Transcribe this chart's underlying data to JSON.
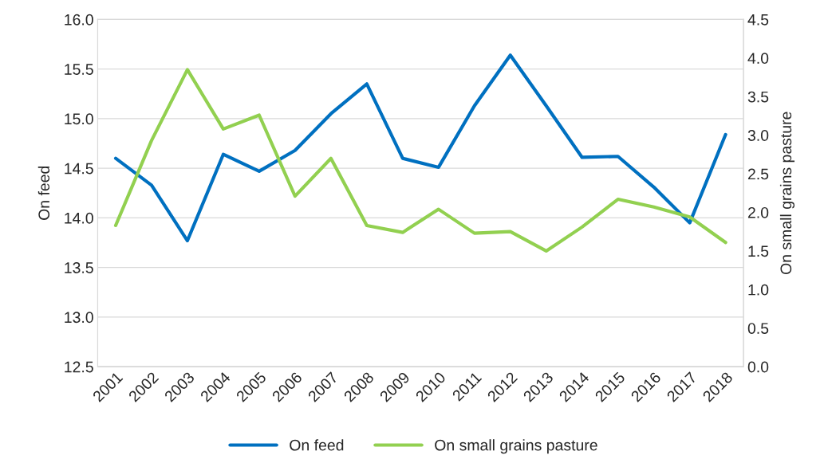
{
  "chart_data": {
    "type": "line",
    "ylabel": "On feed",
    "y2label": "On small grains pasture",
    "categories": [
      "2001",
      "2002",
      "2003",
      "2004",
      "2005",
      "2006",
      "2007",
      "2008",
      "2009",
      "2010",
      "2011",
      "2012",
      "2013",
      "2014",
      "2015",
      "2016",
      "2017",
      "2018"
    ],
    "series": [
      {
        "name": "On feed",
        "color": "#0070c0",
        "values": [
          14.6,
          14.33,
          13.77,
          14.64,
          14.47,
          14.68,
          15.05,
          15.35,
          14.6,
          14.51,
          15.13,
          15.64,
          15.13,
          14.61,
          14.62,
          14.31,
          13.95,
          14.84
        ]
      },
      {
        "name": "On small grains pasture",
        "color": "#92d050",
        "axis": "y2",
        "values": [
          1.83,
          2.93,
          3.85,
          3.08,
          3.26,
          2.21,
          2.7,
          1.83,
          1.74,
          2.04,
          1.73,
          1.75,
          1.5,
          1.81,
          2.17,
          2.07,
          1.94,
          1.61
        ]
      }
    ],
    "ylim": [
      12.5,
      16.0
    ],
    "yticks": [
      {
        "value": 12.5,
        "label": "12.5"
      },
      {
        "value": 13.0,
        "label": "13.0"
      },
      {
        "value": 13.5,
        "label": "13.5"
      },
      {
        "value": 14.0,
        "label": "14.0"
      },
      {
        "value": 14.5,
        "label": "14.5"
      },
      {
        "value": 15.0,
        "label": "15.0"
      },
      {
        "value": 15.5,
        "label": "15.5"
      },
      {
        "value": 16.0,
        "label": "16.0"
      }
    ],
    "y2lim": [
      0,
      4.5
    ],
    "y2ticks": [
      {
        "value": 0,
        "label": "0.0"
      },
      {
        "value": 0.5,
        "label": "0.5"
      },
      {
        "value": 1.0,
        "label": "1.0"
      },
      {
        "value": 1.5,
        "label": "1.5"
      },
      {
        "value": 2.0,
        "label": "2.0"
      },
      {
        "value": 2.5,
        "label": "2.5"
      },
      {
        "value": 3.0,
        "label": "3.0"
      },
      {
        "value": 3.5,
        "label": "3.5"
      },
      {
        "value": 4.0,
        "label": "4.0"
      },
      {
        "value": 4.5,
        "label": "4.5"
      }
    ],
    "grid": "y",
    "legend": "bottom",
    "marker": "none",
    "line_style": "solid"
  }
}
